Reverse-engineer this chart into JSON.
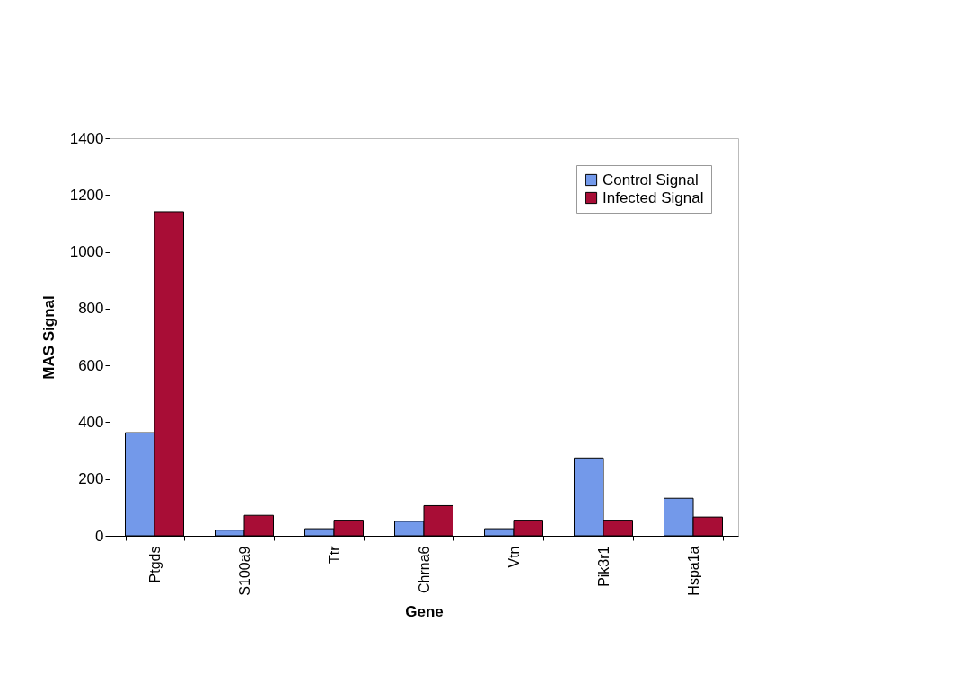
{
  "chart_data": {
    "type": "bar",
    "xlabel": "Gene",
    "ylabel": "MAS Signal",
    "categories": [
      "Ptgds",
      "S100a9",
      "Ttr",
      "Chrna6",
      "Vtn",
      "Pik3r1",
      "Hspa1a"
    ],
    "series": [
      {
        "name": "Control Signal",
        "color": "#7399ea",
        "values": [
          363,
          20,
          25,
          51,
          25,
          274,
          132
        ]
      },
      {
        "name": "Infected Signal",
        "color": "#a80d36",
        "values": [
          1141,
          72,
          55,
          106,
          55,
          55,
          66
        ]
      }
    ],
    "ylim": [
      0,
      1400
    ],
    "yticks": [
      0,
      200,
      400,
      600,
      800,
      1000,
      1200,
      1400
    ],
    "legend": "top right"
  }
}
